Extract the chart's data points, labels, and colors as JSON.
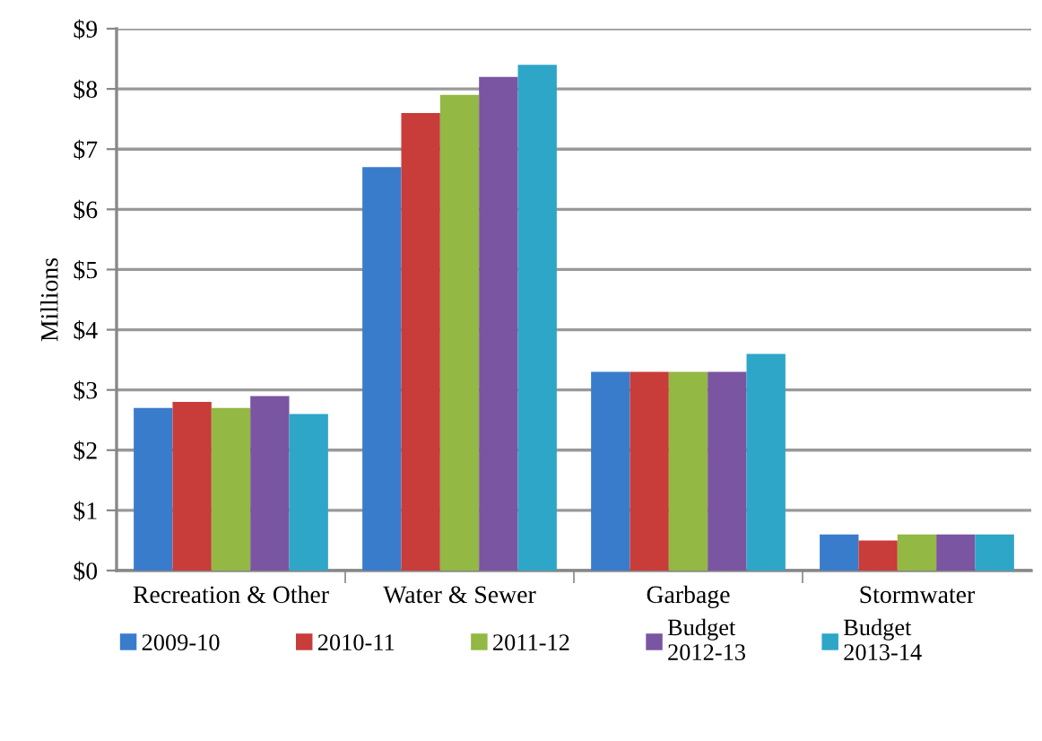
{
  "chart_data": {
    "type": "bar",
    "ylabel": "Millions",
    "categories": [
      "Recreation & Other",
      "Water & Sewer",
      "Garbage",
      "Stormwater"
    ],
    "series": [
      {
        "name": "2009-10",
        "color": "#3a7ccc",
        "values": [
          2.7,
          6.7,
          3.3,
          0.6
        ]
      },
      {
        "name": "2010-11",
        "color": "#c83c3a",
        "values": [
          2.8,
          7.6,
          3.3,
          0.5
        ]
      },
      {
        "name": "2011-12",
        "color": "#93b843",
        "values": [
          2.7,
          7.9,
          3.3,
          0.6
        ]
      },
      {
        "name": "Budget\n2012-13",
        "color": "#7a55a2",
        "values": [
          2.9,
          8.2,
          3.3,
          0.6
        ]
      },
      {
        "name": "Budget\n2013-14",
        "color": "#2ea6c8",
        "values": [
          2.6,
          8.4,
          3.6,
          0.6
        ]
      }
    ],
    "ylim": [
      0,
      9
    ],
    "yticks": [
      {
        "value": 0,
        "label": "$0"
      },
      {
        "value": 1,
        "label": "$1"
      },
      {
        "value": 2,
        "label": "$2"
      },
      {
        "value": 3,
        "label": "$3"
      },
      {
        "value": 4,
        "label": "$4"
      },
      {
        "value": 5,
        "label": "$5"
      },
      {
        "value": 6,
        "label": "$6"
      },
      {
        "value": 7,
        "label": "$7"
      },
      {
        "value": 8,
        "label": "$8"
      },
      {
        "value": 9,
        "label": "$9"
      }
    ],
    "grid": "y",
    "legend": "bottom"
  }
}
